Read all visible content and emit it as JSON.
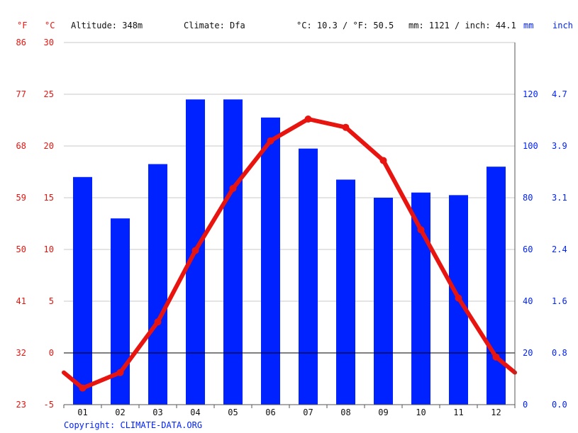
{
  "header": {
    "unit_f": "°F",
    "unit_c": "°C",
    "altitude": "Altitude: 348m",
    "climate": "Climate: Dfa",
    "temp_avg": "°C: 10.3 / °F: 50.5",
    "precip_total": "mm: 1121 / inch: 44.1",
    "unit_mm": "mm",
    "unit_inch": "inch"
  },
  "footer": {
    "copyright": "Copyright: CLIMATE-DATA.ORG"
  },
  "colors": {
    "temperature": "#e8140f",
    "precipitation": "#0022ff"
  },
  "chart_data": {
    "type": "bar+line",
    "categories": [
      "01",
      "02",
      "03",
      "04",
      "05",
      "06",
      "07",
      "08",
      "09",
      "10",
      "11",
      "12"
    ],
    "series": [
      {
        "type": "bar",
        "axis": "right",
        "unit": "mm",
        "values": [
          88,
          72,
          93,
          118,
          118,
          111,
          99,
          87,
          80,
          82,
          81,
          92
        ]
      },
      {
        "type": "line",
        "axis": "left",
        "unit": "°C",
        "values": [
          -3.4,
          -1.9,
          3.0,
          9.9,
          15.9,
          20.5,
          22.6,
          21.8,
          18.6,
          11.9,
          5.3,
          -0.4
        ]
      }
    ],
    "left_axis": {
      "range": [
        -5,
        30
      ],
      "celsius_ticks": [
        "-5",
        "0",
        "5",
        "10",
        "15",
        "20",
        "25",
        "30"
      ],
      "fahrenheit_ticks": [
        "23",
        "32",
        "41",
        "50",
        "59",
        "68",
        "77",
        "86"
      ]
    },
    "right_axis": {
      "range": [
        0,
        140
      ],
      "mm_ticks": [
        "0",
        "20",
        "40",
        "60",
        "80",
        "100",
        "120"
      ],
      "inch_ticks": [
        "0.0",
        "0.8",
        "1.6",
        "2.4",
        "3.1",
        "3.9",
        "4.7"
      ]
    },
    "grid": true
  }
}
